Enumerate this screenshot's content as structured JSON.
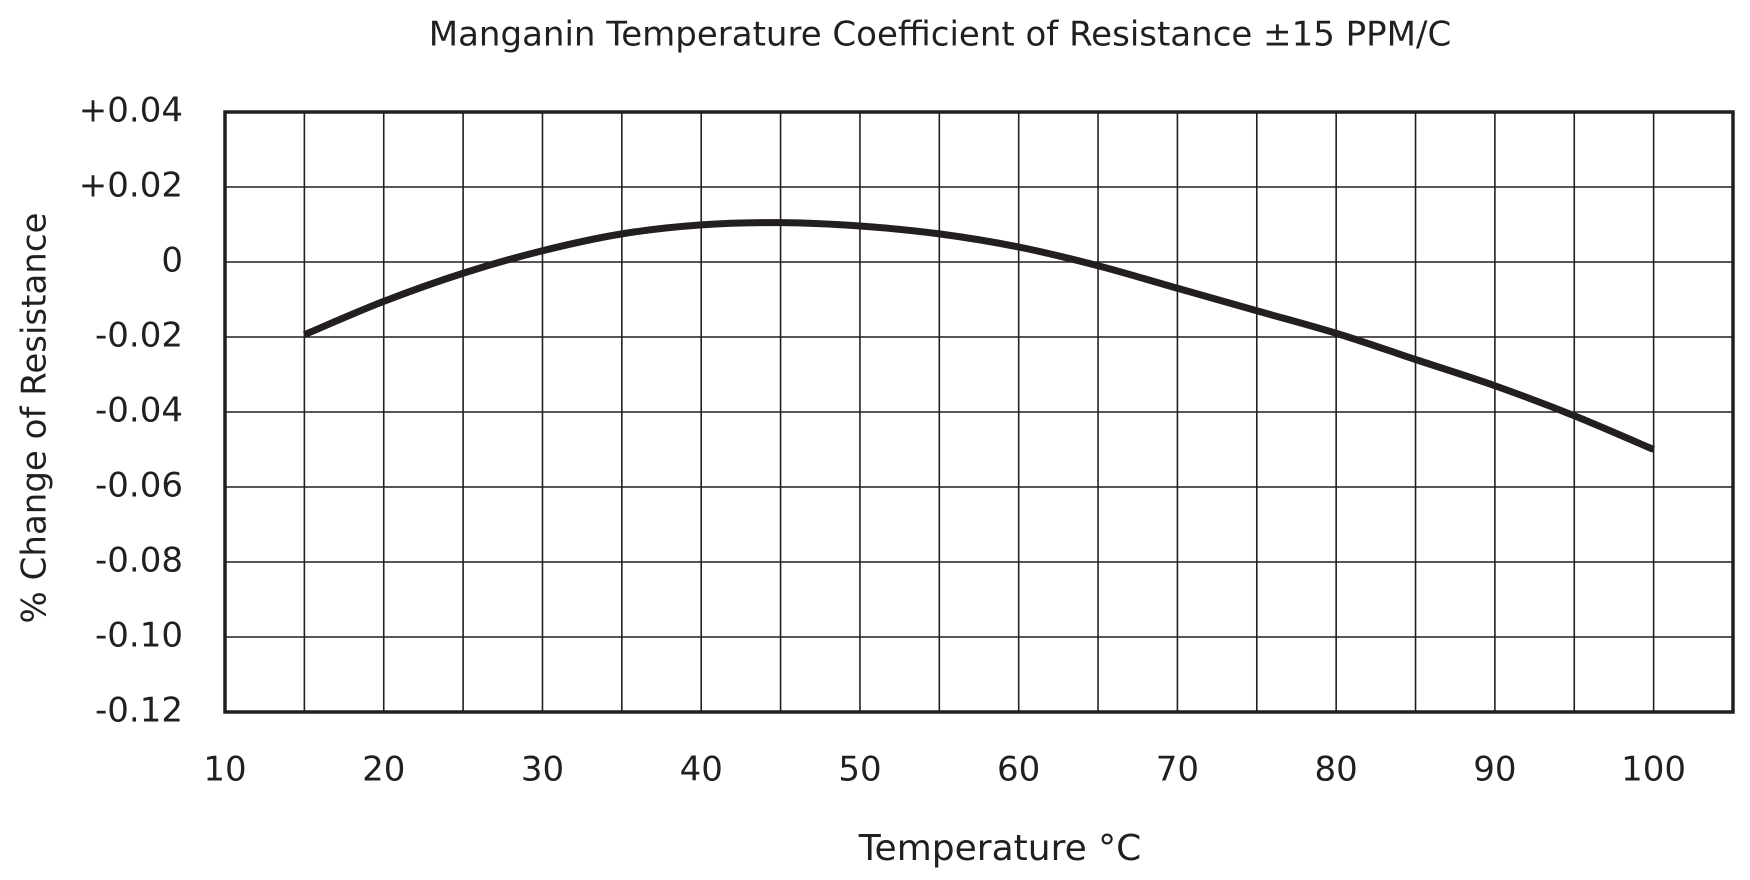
{
  "chart_data": {
    "type": "line",
    "title": "Manganin Temperature Coefficient of Resistance ±15 PPM/C",
    "x_label": "Temperature °C",
    "y_label": "% Change of Resistance",
    "x": [
      15,
      20,
      25,
      30,
      35,
      40,
      45,
      50,
      55,
      60,
      65,
      70,
      75,
      80,
      85,
      90,
      95,
      100
    ],
    "series": [
      {
        "color": "#231f20",
        "values": [
          -0.0194,
          -0.0105,
          -0.003,
          0.003,
          0.0075,
          0.0099,
          0.0105,
          0.0096,
          0.0075,
          0.004,
          -0.001,
          -0.007,
          -0.013,
          -0.019,
          -0.026,
          -0.033,
          -0.041,
          -0.05
        ]
      }
    ],
    "xlim": [
      10,
      105
    ],
    "xticks": [
      10,
      20,
      30,
      40,
      50,
      60,
      70,
      80,
      90,
      100
    ],
    "x_minor_grid": [
      15,
      25,
      35,
      45,
      55,
      65,
      75,
      85,
      95
    ],
    "ylim": [
      -0.12,
      0.04
    ],
    "yticks": [
      {
        "value": 0.04,
        "label": "+0.04"
      },
      {
        "value": 0.02,
        "label": "+0.02"
      },
      0,
      -0.02,
      -0.04,
      -0.06,
      -0.08,
      {
        "value": -0.1,
        "label": "-0.10"
      },
      -0.12
    ],
    "grid": true
  }
}
